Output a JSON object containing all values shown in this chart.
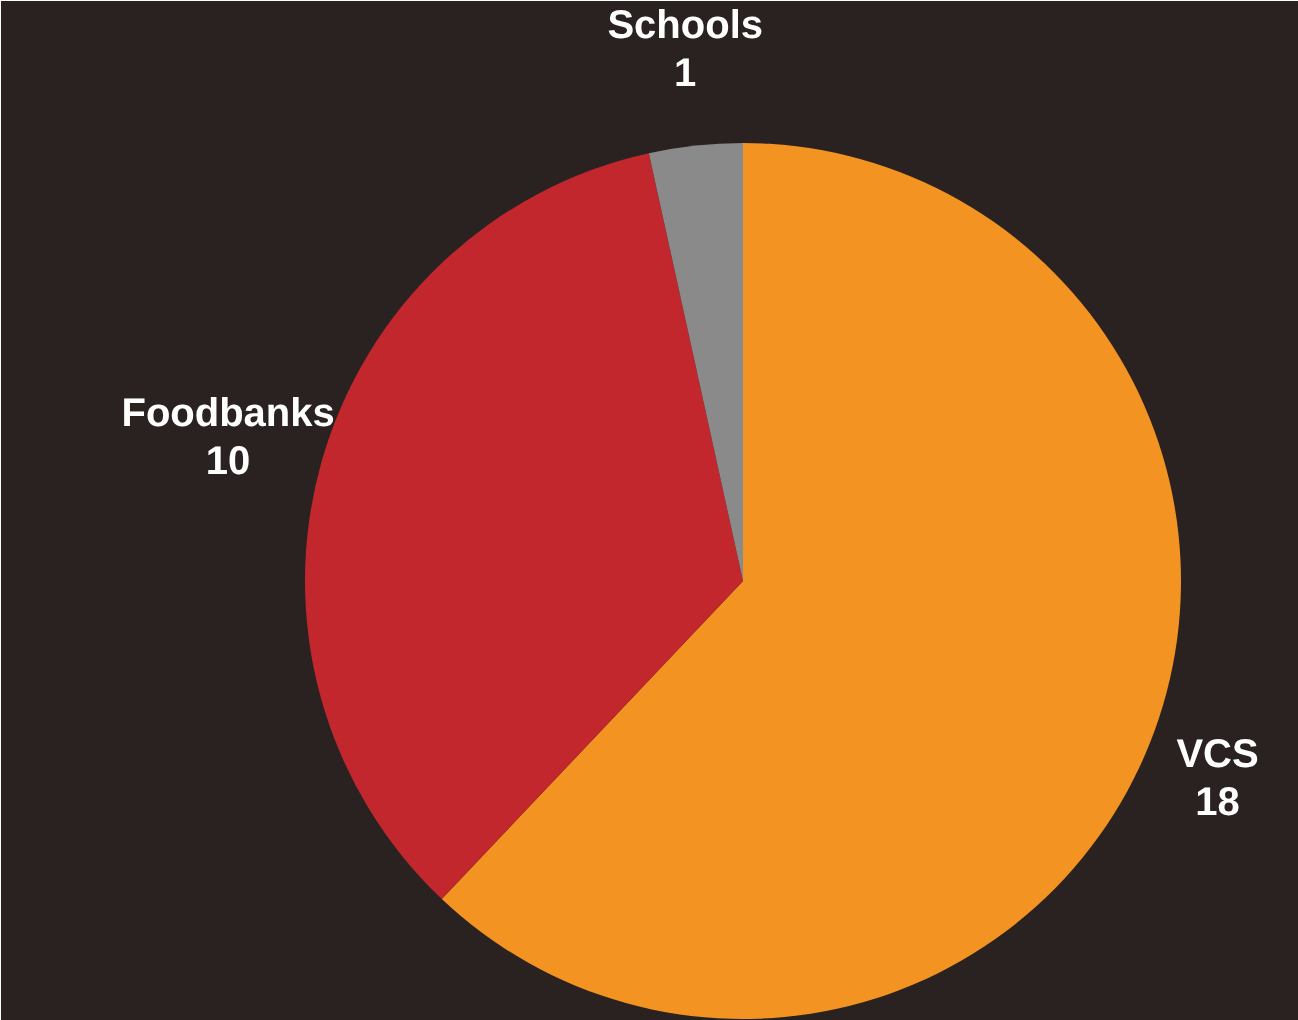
{
  "chart_data": {
    "type": "pie",
    "categories": [
      "VCS",
      "Foodbanks",
      "Schools"
    ],
    "values": [
      18,
      10,
      1
    ],
    "colors": [
      "#f39322",
      "#c1272d",
      "#8a8a8a"
    ],
    "data_labels": true
  }
}
